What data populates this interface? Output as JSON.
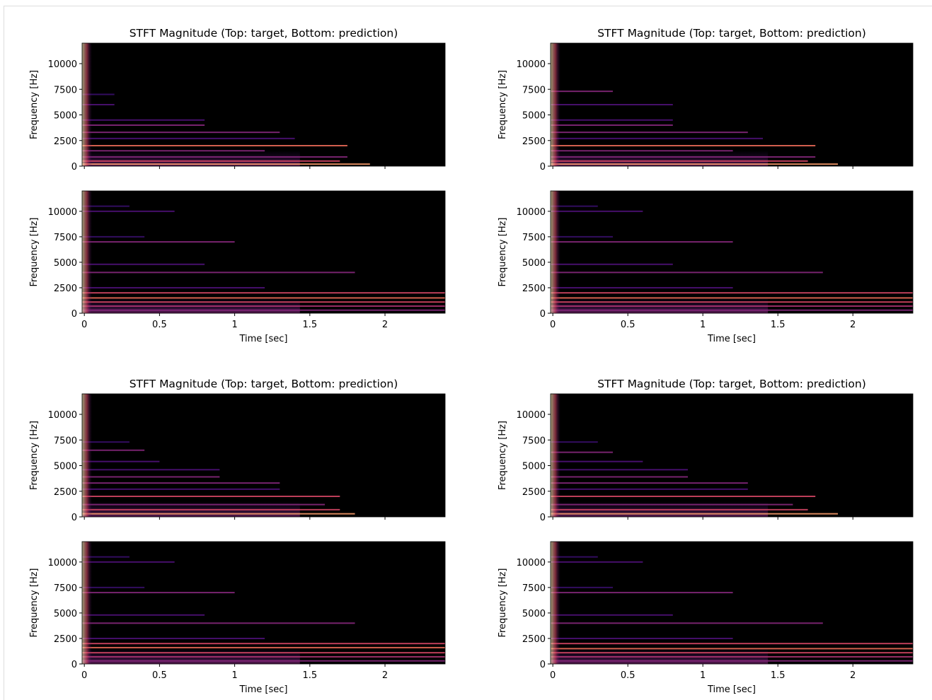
{
  "chart_data": [
    {
      "type": "spectrogram",
      "title": "STFT Magnitude (Top: target, Bottom: prediction)",
      "panels": [
        {
          "ylabel": "Frequency [Hz]",
          "xlim": [
            -0.015,
            2.4
          ],
          "ylim": [
            0,
            12000
          ],
          "xticks": [
            0,
            0.5,
            1,
            1.5,
            2
          ],
          "yticks": [
            0,
            2500,
            5000,
            7500,
            10000
          ],
          "show_xtick_labels": false,
          "harmonics": [
            {
              "frequency": 200,
              "end": 1.9,
              "color": "#fe9f6d"
            },
            {
              "frequency": 500,
              "end": 1.7,
              "color": "#de4968"
            },
            {
              "frequency": 900,
              "end": 1.75,
              "color": "#8c2981"
            },
            {
              "frequency": 1500,
              "end": 1.2,
              "color": "#8c2981"
            },
            {
              "frequency": 2000,
              "end": 1.75,
              "color": "#f7705c"
            },
            {
              "frequency": 2700,
              "end": 1.4,
              "color": "#51127c"
            },
            {
              "frequency": 3300,
              "end": 1.3,
              "color": "#8c2981"
            },
            {
              "frequency": 4000,
              "end": 0.8,
              "color": "#8c2981"
            },
            {
              "frequency": 4500,
              "end": 0.8,
              "color": "#51127c"
            },
            {
              "frequency": 6000,
              "end": 0.2,
              "color": "#51127c"
            },
            {
              "frequency": 7000,
              "end": 0.2,
              "color": "#3b0f70"
            }
          ]
        },
        {
          "ylabel": "Frequency [Hz]",
          "xlabel": "Time [sec]",
          "xlim": [
            -0.015,
            2.4
          ],
          "ylim": [
            0,
            12000
          ],
          "xticks": [
            0,
            0.5,
            1,
            1.5,
            2
          ],
          "yticks": [
            0,
            2500,
            5000,
            7500,
            10000
          ],
          "show_xtick_labels": true,
          "harmonics": [
            {
              "frequency": 300,
              "end": 2.4,
              "color": "#8c2981"
            },
            {
              "frequency": 700,
              "end": 2.4,
              "color": "#b73779"
            },
            {
              "frequency": 1100,
              "end": 2.4,
              "color": "#de4968"
            },
            {
              "frequency": 1500,
              "end": 2.4,
              "color": "#f7705c"
            },
            {
              "frequency": 2000,
              "end": 2.4,
              "color": "#de4968"
            },
            {
              "frequency": 2500,
              "end": 1.2,
              "color": "#51127c"
            },
            {
              "frequency": 4000,
              "end": 1.8,
              "color": "#8c2981"
            },
            {
              "frequency": 4800,
              "end": 0.8,
              "color": "#51127c"
            },
            {
              "frequency": 7000,
              "end": 1.0,
              "color": "#8c2981"
            },
            {
              "frequency": 7500,
              "end": 0.4,
              "color": "#3b0f70"
            },
            {
              "frequency": 10000,
              "end": 0.6,
              "color": "#51127c"
            },
            {
              "frequency": 10500,
              "end": 0.3,
              "color": "#3b0f70"
            }
          ]
        }
      ]
    },
    {
      "type": "spectrogram",
      "title": "STFT Magnitude (Top: target, Bottom: prediction)",
      "panels": [
        {
          "ylabel": "Frequency [Hz]",
          "xlim": [
            -0.015,
            2.4
          ],
          "ylim": [
            0,
            12000
          ],
          "xticks": [
            0,
            0.5,
            1,
            1.5,
            2
          ],
          "yticks": [
            0,
            2500,
            5000,
            7500,
            10000
          ],
          "show_xtick_labels": false,
          "harmonics": [
            {
              "frequency": 200,
              "end": 1.9,
              "color": "#fe9f6d"
            },
            {
              "frequency": 500,
              "end": 1.7,
              "color": "#de4968"
            },
            {
              "frequency": 900,
              "end": 1.75,
              "color": "#8c2981"
            },
            {
              "frequency": 1500,
              "end": 1.2,
              "color": "#8c2981"
            },
            {
              "frequency": 2000,
              "end": 1.75,
              "color": "#f7705c"
            },
            {
              "frequency": 2700,
              "end": 1.4,
              "color": "#51127c"
            },
            {
              "frequency": 3300,
              "end": 1.3,
              "color": "#8c2981"
            },
            {
              "frequency": 4000,
              "end": 0.8,
              "color": "#8c2981"
            },
            {
              "frequency": 4500,
              "end": 0.8,
              "color": "#51127c"
            },
            {
              "frequency": 6000,
              "end": 0.8,
              "color": "#51127c"
            },
            {
              "frequency": 7300,
              "end": 0.4,
              "color": "#8c2981"
            }
          ]
        },
        {
          "ylabel": "Frequency [Hz]",
          "xlabel": "Time [sec]",
          "xlim": [
            -0.015,
            2.4
          ],
          "ylim": [
            0,
            12000
          ],
          "xticks": [
            0,
            0.5,
            1,
            1.5,
            2
          ],
          "yticks": [
            0,
            2500,
            5000,
            7500,
            10000
          ],
          "show_xtick_labels": true,
          "harmonics": [
            {
              "frequency": 300,
              "end": 2.4,
              "color": "#8c2981"
            },
            {
              "frequency": 700,
              "end": 2.4,
              "color": "#b73779"
            },
            {
              "frequency": 1100,
              "end": 2.4,
              "color": "#de4968"
            },
            {
              "frequency": 1500,
              "end": 2.4,
              "color": "#f7705c"
            },
            {
              "frequency": 2000,
              "end": 2.4,
              "color": "#de4968"
            },
            {
              "frequency": 2500,
              "end": 1.2,
              "color": "#51127c"
            },
            {
              "frequency": 4000,
              "end": 1.8,
              "color": "#8c2981"
            },
            {
              "frequency": 4800,
              "end": 0.8,
              "color": "#51127c"
            },
            {
              "frequency": 7000,
              "end": 1.2,
              "color": "#8c2981"
            },
            {
              "frequency": 7500,
              "end": 0.4,
              "color": "#3b0f70"
            },
            {
              "frequency": 10000,
              "end": 0.6,
              "color": "#51127c"
            },
            {
              "frequency": 10500,
              "end": 0.3,
              "color": "#3b0f70"
            }
          ]
        }
      ]
    },
    {
      "type": "spectrogram",
      "title": "STFT Magnitude (Top: target, Bottom: prediction)",
      "panels": [
        {
          "ylabel": "Frequency [Hz]",
          "xlim": [
            -0.015,
            2.4
          ],
          "ylim": [
            0,
            12000
          ],
          "xticks": [
            0,
            0.5,
            1,
            1.5,
            2
          ],
          "yticks": [
            0,
            2500,
            5000,
            7500,
            10000
          ],
          "show_xtick_labels": false,
          "harmonics": [
            {
              "frequency": 300,
              "end": 1.8,
              "color": "#fe9f6d"
            },
            {
              "frequency": 700,
              "end": 1.7,
              "color": "#de4968"
            },
            {
              "frequency": 1200,
              "end": 1.6,
              "color": "#8c2981"
            },
            {
              "frequency": 2000,
              "end": 1.7,
              "color": "#de4968"
            },
            {
              "frequency": 2700,
              "end": 1.3,
              "color": "#51127c"
            },
            {
              "frequency": 3300,
              "end": 1.3,
              "color": "#8c2981"
            },
            {
              "frequency": 3900,
              "end": 0.9,
              "color": "#8c2981"
            },
            {
              "frequency": 4600,
              "end": 0.9,
              "color": "#51127c"
            },
            {
              "frequency": 5400,
              "end": 0.5,
              "color": "#51127c"
            },
            {
              "frequency": 6500,
              "end": 0.4,
              "color": "#8c2981"
            },
            {
              "frequency": 7300,
              "end": 0.3,
              "color": "#3b0f70"
            }
          ]
        },
        {
          "ylabel": "Frequency [Hz]",
          "xlabel": "Time [sec]",
          "xlim": [
            -0.015,
            2.4
          ],
          "ylim": [
            0,
            12000
          ],
          "xticks": [
            0,
            0.5,
            1,
            1.5,
            2
          ],
          "yticks": [
            0,
            2500,
            5000,
            7500,
            10000
          ],
          "show_xtick_labels": true,
          "harmonics": [
            {
              "frequency": 300,
              "end": 2.4,
              "color": "#8c2981"
            },
            {
              "frequency": 700,
              "end": 2.4,
              "color": "#b73779"
            },
            {
              "frequency": 1100,
              "end": 2.4,
              "color": "#de4968"
            },
            {
              "frequency": 1600,
              "end": 2.4,
              "color": "#f7705c"
            },
            {
              "frequency": 2000,
              "end": 2.4,
              "color": "#de4968"
            },
            {
              "frequency": 2500,
              "end": 1.2,
              "color": "#51127c"
            },
            {
              "frequency": 4000,
              "end": 1.8,
              "color": "#8c2981"
            },
            {
              "frequency": 4800,
              "end": 0.8,
              "color": "#51127c"
            },
            {
              "frequency": 7000,
              "end": 1.0,
              "color": "#8c2981"
            },
            {
              "frequency": 7500,
              "end": 0.4,
              "color": "#3b0f70"
            },
            {
              "frequency": 10000,
              "end": 0.6,
              "color": "#51127c"
            },
            {
              "frequency": 10500,
              "end": 0.3,
              "color": "#3b0f70"
            }
          ]
        }
      ]
    },
    {
      "type": "spectrogram",
      "title": "STFT Magnitude (Top: target, Bottom: prediction)",
      "panels": [
        {
          "ylabel": "Frequency [Hz]",
          "xlim": [
            -0.015,
            2.4
          ],
          "ylim": [
            0,
            12000
          ],
          "xticks": [
            0,
            0.5,
            1,
            1.5,
            2
          ],
          "yticks": [
            0,
            2500,
            5000,
            7500,
            10000
          ],
          "show_xtick_labels": false,
          "harmonics": [
            {
              "frequency": 300,
              "end": 1.9,
              "color": "#fe9f6d"
            },
            {
              "frequency": 700,
              "end": 1.7,
              "color": "#de4968"
            },
            {
              "frequency": 1200,
              "end": 1.6,
              "color": "#8c2981"
            },
            {
              "frequency": 2000,
              "end": 1.75,
              "color": "#de4968"
            },
            {
              "frequency": 2700,
              "end": 1.3,
              "color": "#51127c"
            },
            {
              "frequency": 3300,
              "end": 1.3,
              "color": "#8c2981"
            },
            {
              "frequency": 3900,
              "end": 0.9,
              "color": "#8c2981"
            },
            {
              "frequency": 4600,
              "end": 0.9,
              "color": "#51127c"
            },
            {
              "frequency": 5400,
              "end": 0.6,
              "color": "#51127c"
            },
            {
              "frequency": 6300,
              "end": 0.4,
              "color": "#8c2981"
            },
            {
              "frequency": 7300,
              "end": 0.3,
              "color": "#3b0f70"
            }
          ]
        },
        {
          "ylabel": "Frequency [Hz]",
          "xlabel": "Time [sec]",
          "xlim": [
            -0.015,
            2.4
          ],
          "ylim": [
            0,
            12000
          ],
          "xticks": [
            0,
            0.5,
            1,
            1.5,
            2
          ],
          "yticks": [
            0,
            2500,
            5000,
            7500,
            10000
          ],
          "show_xtick_labels": true,
          "harmonics": [
            {
              "frequency": 300,
              "end": 2.4,
              "color": "#8c2981"
            },
            {
              "frequency": 700,
              "end": 2.4,
              "color": "#b73779"
            },
            {
              "frequency": 1100,
              "end": 2.4,
              "color": "#de4968"
            },
            {
              "frequency": 1500,
              "end": 2.4,
              "color": "#f7705c"
            },
            {
              "frequency": 2000,
              "end": 2.4,
              "color": "#de4968"
            },
            {
              "frequency": 2500,
              "end": 1.2,
              "color": "#51127c"
            },
            {
              "frequency": 4000,
              "end": 1.8,
              "color": "#8c2981"
            },
            {
              "frequency": 4800,
              "end": 0.8,
              "color": "#51127c"
            },
            {
              "frequency": 7000,
              "end": 1.2,
              "color": "#8c2981"
            },
            {
              "frequency": 7500,
              "end": 0.4,
              "color": "#3b0f70"
            },
            {
              "frequency": 10000,
              "end": 0.6,
              "color": "#51127c"
            },
            {
              "frequency": 10500,
              "end": 0.3,
              "color": "#3b0f70"
            }
          ]
        }
      ]
    }
  ]
}
